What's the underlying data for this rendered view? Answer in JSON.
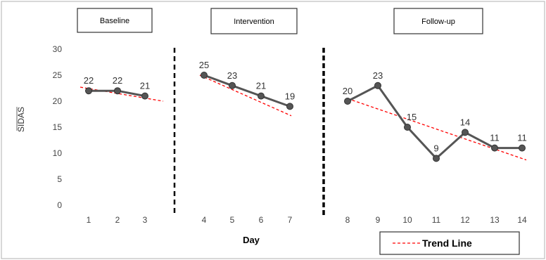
{
  "chart_data": {
    "type": "line",
    "xlabel": "Day",
    "ylabel": "SIDAS",
    "ylim": [
      0,
      30
    ],
    "yticks": [
      "0",
      "5",
      "10",
      "15",
      "20",
      "25",
      "30"
    ],
    "phases": [
      {
        "label": "Baseline",
        "x": [
          1,
          2,
          3
        ],
        "values": [
          22,
          22,
          21
        ],
        "labels": [
          "22",
          "22",
          "21"
        ],
        "trend": [
          22.7,
          20
        ]
      },
      {
        "label": "Intervention",
        "x": [
          4,
          5,
          6,
          7
        ],
        "values": [
          25,
          23,
          21,
          19
        ],
        "labels": [
          "25",
          "23",
          "21",
          "19"
        ],
        "trend": [
          25,
          17.2
        ]
      },
      {
        "label": "Follow-up",
        "x": [
          8,
          9,
          10,
          11,
          12,
          13,
          14
        ],
        "values": [
          20,
          23,
          15,
          9,
          14,
          11,
          11
        ],
        "labels": [
          "20",
          "23",
          "15",
          "9",
          "14",
          "11",
          "11"
        ],
        "trend": [
          20.5,
          8.7
        ]
      }
    ],
    "xtick_labels": [
      "1",
      "2",
      "3",
      "4",
      "5",
      "6",
      "7",
      "8",
      "9",
      "10",
      "11",
      "12",
      "13",
      "14"
    ],
    "legend": {
      "label": "Trend Line",
      "position": "bottom-right"
    },
    "colors": {
      "series": "#555555",
      "trend": "#ff0000",
      "phase_line": "#000000"
    },
    "grid": false
  }
}
